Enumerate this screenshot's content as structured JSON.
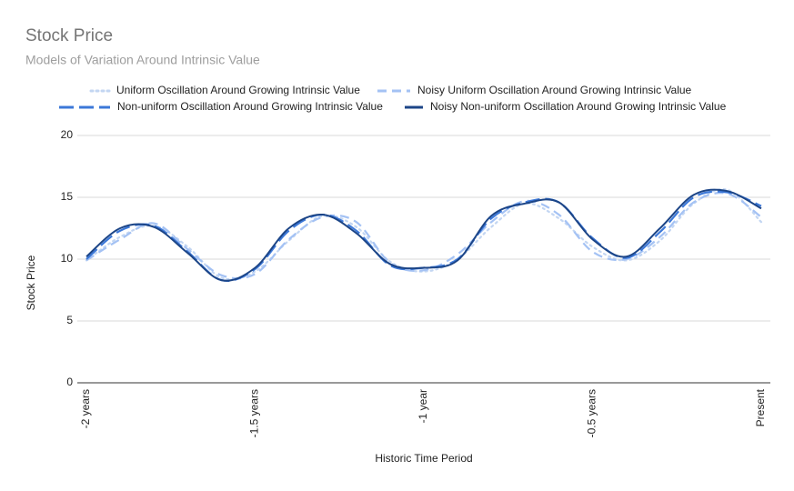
{
  "chart_data": {
    "type": "line",
    "title": "Stock Price",
    "subtitle": "Models of Variation Around Intrinsic Value",
    "x_label": "Historic Time Period",
    "y_label": "Stock Price",
    "categories": [
      "-2 years",
      null,
      null,
      null,
      null,
      "-1.5 years",
      null,
      null,
      null,
      null,
      "-1 year",
      null,
      null,
      null,
      null,
      "-0.5 years",
      null,
      null,
      null,
      null,
      "Present"
    ],
    "series": [
      {
        "name": "Uniform Oscillation Around Growing Intrinsic Value",
        "color": "#c3d6f2",
        "dash": "2 4",
        "values": [
          9.9,
          11.8,
          12.7,
          11.0,
          8.5,
          9.0,
          11.5,
          13.5,
          12.6,
          9.8,
          9.0,
          10.0,
          12.6,
          14.5,
          13.3,
          11.0,
          9.9,
          11.5,
          14.5,
          15.6,
          13.0
        ]
      },
      {
        "name": "Noisy Uniform Oscillation Around Growing Intrinsic Value",
        "color": "#a4c2f4",
        "dash": "10 6",
        "values": [
          9.9,
          11.6,
          12.9,
          10.8,
          8.7,
          8.8,
          11.6,
          13.4,
          13.0,
          9.7,
          9.1,
          10.4,
          13.0,
          14.7,
          13.6,
          10.6,
          10.0,
          11.8,
          14.6,
          15.3,
          13.4
        ]
      },
      {
        "name": "Non-uniform Oscillation Around Growing Intrinsic Value",
        "color": "#3c78d8",
        "dash": "16 6",
        "values": [
          10.0,
          12.3,
          12.7,
          10.6,
          8.3,
          9.2,
          12.3,
          13.6,
          12.3,
          9.5,
          9.3,
          10.0,
          13.3,
          14.6,
          14.6,
          11.7,
          10.1,
          12.2,
          15.0,
          15.4,
          14.3
        ]
      },
      {
        "name": "Noisy Non-uniform Oscillation Around Growing Intrinsic Value",
        "color": "#1c4587",
        "dash": "none",
        "values": [
          10.2,
          12.5,
          12.6,
          10.5,
          8.3,
          9.3,
          12.5,
          13.6,
          12.1,
          9.6,
          9.3,
          9.9,
          13.5,
          14.5,
          14.6,
          11.6,
          10.2,
          12.5,
          15.2,
          15.5,
          14.1
        ]
      }
    ],
    "ylim": [
      0,
      20
    ],
    "yticks": [
      0,
      5,
      10,
      15,
      20
    ],
    "grid": true
  }
}
